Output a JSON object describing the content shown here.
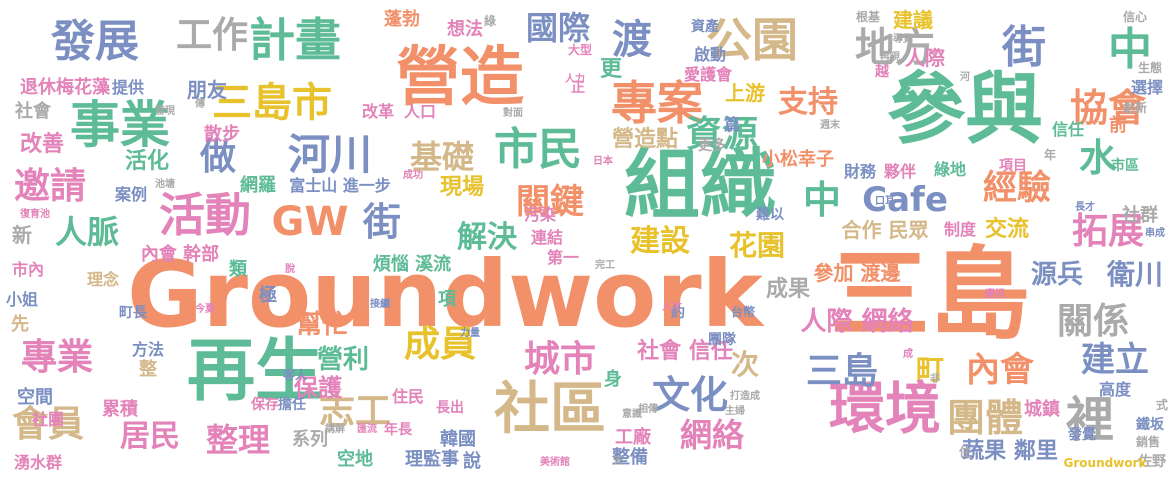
{
  "colors": {
    "orange": "#f2906a",
    "teal": "#5dbb97",
    "blue": "#7b8fc2",
    "pink": "#e383b9",
    "green": "#9bc946",
    "yellow": "#e8c22c",
    "tan": "#d4b88a",
    "gray": "#aaaaaa"
  },
  "words": [
    {
      "text": "Groundwork",
      "color": "orange"
    },
    {
      "text": "三島",
      "color": "orange"
    },
    {
      "text": "參與",
      "color": "teal"
    },
    {
      "text": "組織",
      "color": "teal"
    },
    {
      "text": "再生",
      "color": "teal"
    },
    {
      "text": "營造",
      "color": "orange"
    },
    {
      "text": "環境",
      "color": "pink"
    },
    {
      "text": "社區",
      "color": "tan"
    },
    {
      "text": "事業",
      "color": "teal"
    },
    {
      "text": "計畫",
      "color": "teal"
    },
    {
      "text": "公園",
      "color": "tan"
    },
    {
      "text": "專案",
      "color": "orange"
    },
    {
      "text": "市民",
      "color": "teal"
    },
    {
      "text": "活動",
      "color": "pink"
    },
    {
      "text": "發展",
      "color": "blue"
    },
    {
      "text": "工作",
      "color": "gray"
    },
    {
      "text": "國際",
      "color": "blue"
    },
    {
      "text": "河川",
      "color": "blue"
    },
    {
      "text": "三島市",
      "color": "yellow"
    },
    {
      "text": "地方",
      "color": "gray"
    },
    {
      "text": "街",
      "color": "blue"
    },
    {
      "text": "中",
      "color": "teal"
    },
    {
      "text": "渡",
      "color": "blue"
    },
    {
      "text": "協會",
      "color": "orange"
    },
    {
      "text": "資源",
      "color": "teal"
    },
    {
      "text": "支持",
      "color": "orange"
    },
    {
      "text": "水",
      "color": "teal"
    },
    {
      "text": "邀請",
      "color": "pink"
    },
    {
      "text": "基礎",
      "color": "tan"
    },
    {
      "text": "做",
      "color": "blue"
    },
    {
      "text": "關鍵",
      "color": "orange"
    },
    {
      "text": "GW",
      "color": "orange"
    },
    {
      "text": "街",
      "color": "blue"
    },
    {
      "text": "中",
      "color": "teal"
    },
    {
      "text": "Cafe",
      "color": "blue"
    },
    {
      "text": "經驗",
      "color": "orange"
    },
    {
      "text": "拓展",
      "color": "pink"
    },
    {
      "text": "人脈",
      "color": "teal"
    },
    {
      "text": "解決",
      "color": "teal"
    },
    {
      "text": "建設",
      "color": "yellow"
    },
    {
      "text": "花園",
      "color": "yellow"
    },
    {
      "text": "人際 網絡",
      "color": "pink"
    },
    {
      "text": "關係",
      "color": "gray"
    },
    {
      "text": "衛川",
      "color": "blue"
    },
    {
      "text": "源兵",
      "color": "blue"
    },
    {
      "text": "成員",
      "color": "yellow"
    },
    {
      "text": "城市",
      "color": "pink"
    },
    {
      "text": "文化",
      "color": "blue"
    },
    {
      "text": "三島",
      "color": "blue"
    },
    {
      "text": "町",
      "color": "yellow"
    },
    {
      "text": "內會",
      "color": "orange"
    },
    {
      "text": "建立",
      "color": "blue"
    },
    {
      "text": "裡",
      "color": "gray"
    },
    {
      "text": "團體",
      "color": "tan"
    },
    {
      "text": "專業",
      "color": "pink"
    },
    {
      "text": "會員",
      "color": "tan"
    },
    {
      "text": "居民",
      "color": "pink"
    },
    {
      "text": "志工",
      "color": "tan"
    },
    {
      "text": "整理",
      "color": "pink"
    },
    {
      "text": "網絡",
      "color": "pink"
    },
    {
      "text": "營利",
      "color": "teal"
    },
    {
      "text": "幫忙",
      "color": "orange"
    },
    {
      "text": "保護",
      "color": "pink"
    },
    {
      "text": "社會 信任",
      "color": "pink"
    },
    {
      "text": "次",
      "color": "tan"
    },
    {
      "text": "蔬果 鄰里",
      "color": "blue"
    },
    {
      "text": "更",
      "color": "teal"
    },
    {
      "text": "上游",
      "color": "yellow"
    },
    {
      "text": "營造點",
      "color": "tan"
    },
    {
      "text": "現場",
      "color": "yellow"
    },
    {
      "text": "活化",
      "color": "teal"
    },
    {
      "text": "散步",
      "color": "pink"
    },
    {
      "text": "改善",
      "color": "pink"
    },
    {
      "text": "朋友",
      "color": "blue"
    },
    {
      "text": "退休梅花藻",
      "color": "pink"
    },
    {
      "text": "社會",
      "color": "gray"
    },
    {
      "text": "蓬勃",
      "color": "orange"
    },
    {
      "text": "想法",
      "color": "pink"
    },
    {
      "text": "建議",
      "color": "yellow"
    },
    {
      "text": "人際",
      "color": "pink"
    },
    {
      "text": "合作 民眾",
      "color": "tan"
    },
    {
      "text": "交流",
      "color": "yellow"
    },
    {
      "text": "參加 渡邊",
      "color": "orange"
    },
    {
      "text": "成果",
      "color": "gray"
    },
    {
      "text": "小松幸子",
      "color": "orange"
    },
    {
      "text": "夥伴",
      "color": "pink"
    },
    {
      "text": "網羅",
      "color": "teal"
    },
    {
      "text": "富士山 進一步",
      "color": "blue"
    },
    {
      "text": "新",
      "color": "gray"
    },
    {
      "text": "內會 幹部",
      "color": "pink"
    },
    {
      "text": "煩惱 溪流",
      "color": "teal"
    },
    {
      "text": "理監事",
      "color": "blue"
    },
    {
      "text": "空地",
      "color": "teal"
    },
    {
      "text": "系列",
      "color": "gray"
    },
    {
      "text": "韓國",
      "color": "blue"
    },
    {
      "text": "累積",
      "color": "pink"
    },
    {
      "text": "工廠",
      "color": "pink"
    },
    {
      "text": "整備",
      "color": "blue"
    },
    {
      "text": "社群",
      "color": "gray"
    },
    {
      "text": "城鎮",
      "color": "pink"
    },
    {
      "text": "高度",
      "color": "blue"
    },
    {
      "text": "佐野",
      "color": "gray"
    },
    {
      "text": "Groundwork",
      "color": "yellow"
    },
    {
      "text": "湧水群",
      "color": "pink"
    },
    {
      "text": "選擇",
      "color": "blue"
    },
    {
      "text": "生態",
      "color": "gray"
    },
    {
      "text": "信任",
      "color": "teal"
    },
    {
      "text": "前",
      "color": "orange"
    },
    {
      "text": "市區",
      "color": "teal"
    },
    {
      "text": "住民",
      "color": "pink"
    },
    {
      "text": "空間",
      "color": "blue"
    },
    {
      "text": "社團",
      "color": "pink"
    },
    {
      "text": "方法",
      "color": "blue"
    },
    {
      "text": "保存",
      "color": "pink"
    },
    {
      "text": "擔任",
      "color": "blue"
    },
    {
      "text": "小姐",
      "color": "blue"
    },
    {
      "text": "理念",
      "color": "tan"
    },
    {
      "text": "市內",
      "color": "pink"
    },
    {
      "text": "案例",
      "color": "blue"
    },
    {
      "text": "提供",
      "color": "blue"
    },
    {
      "text": "資產",
      "color": "blue"
    },
    {
      "text": "啟動",
      "color": "blue"
    },
    {
      "text": "愛護會",
      "color": "pink"
    },
    {
      "text": "更多",
      "color": "gray"
    },
    {
      "text": "人口",
      "color": "pink"
    },
    {
      "text": "改革",
      "color": "pink"
    },
    {
      "text": "連結",
      "color": "pink"
    },
    {
      "text": "污染",
      "color": "pink"
    },
    {
      "text": "第一",
      "color": "pink"
    },
    {
      "text": "類",
      "color": "teal"
    },
    {
      "text": "極",
      "color": "blue"
    },
    {
      "text": "町長",
      "color": "blue"
    },
    {
      "text": "項",
      "color": "teal"
    },
    {
      "text": "身",
      "color": "teal"
    },
    {
      "text": "財務",
      "color": "blue"
    },
    {
      "text": "綠地",
      "color": "teal"
    },
    {
      "text": "項目",
      "color": "pink"
    },
    {
      "text": "制度",
      "color": "pink"
    },
    {
      "text": "難以",
      "color": "blue"
    },
    {
      "text": "說",
      "color": "blue"
    },
    {
      "text": "年長",
      "color": "pink"
    },
    {
      "text": "長出",
      "color": "pink"
    },
    {
      "text": "客人",
      "color": "blue"
    },
    {
      "text": "團隊",
      "color": "blue"
    },
    {
      "text": "約",
      "color": "blue"
    },
    {
      "text": "篇",
      "color": "blue"
    },
    {
      "text": "正",
      "color": "pink"
    },
    {
      "text": "先",
      "color": "tan"
    },
    {
      "text": "整",
      "color": "tan"
    },
    {
      "text": "式",
      "color": "gray"
    },
    {
      "text": "鐵坂",
      "color": "blue"
    },
    {
      "text": "發覺",
      "color": "blue"
    },
    {
      "text": "銷售",
      "color": "gray"
    },
    {
      "text": "創新",
      "color": "gray"
    },
    {
      "text": "信心",
      "color": "gray"
    },
    {
      "text": "根基",
      "color": "gray"
    },
    {
      "text": "再現",
      "color": "gray"
    },
    {
      "text": "大型",
      "color": "pink"
    },
    {
      "text": "人力",
      "color": "pink"
    },
    {
      "text": "綠",
      "color": "gray"
    },
    {
      "text": "越",
      "color": "pink"
    },
    {
      "text": "對面",
      "color": "gray"
    },
    {
      "text": "日本",
      "color": "pink"
    },
    {
      "text": "成功",
      "color": "pink"
    },
    {
      "text": "池塘",
      "color": "gray"
    },
    {
      "text": "復育池",
      "color": "pink"
    },
    {
      "text": "口耳",
      "color": "blue"
    },
    {
      "text": "長才",
      "color": "blue"
    },
    {
      "text": "串成",
      "color": "blue"
    },
    {
      "text": "人才",
      "color": "pink"
    },
    {
      "text": "接續",
      "color": "blue"
    },
    {
      "text": "今夏",
      "color": "pink"
    },
    {
      "text": "力量",
      "color": "blue"
    },
    {
      "text": "台幣",
      "color": "blue"
    },
    {
      "text": "慶祝",
      "color": "pink"
    },
    {
      "text": "完工",
      "color": "gray"
    },
    {
      "text": "意識",
      "color": "gray"
    },
    {
      "text": "主婦",
      "color": "gray"
    },
    {
      "text": "打造成",
      "color": "gray"
    },
    {
      "text": "相傳",
      "color": "gray"
    },
    {
      "text": "美術館",
      "color": "pink"
    },
    {
      "text": "天",
      "color": "gray"
    },
    {
      "text": "講解",
      "color": "gray"
    },
    {
      "text": "匯流",
      "color": "pink"
    },
    {
      "text": "住",
      "color": "gray"
    },
    {
      "text": "成",
      "color": "pink"
    },
    {
      "text": "非",
      "color": "gray"
    },
    {
      "text": "年",
      "color": "gray"
    },
    {
      "text": "週末",
      "color": "gray"
    },
    {
      "text": "發現",
      "color": "gray"
    },
    {
      "text": "河",
      "color": "gray"
    },
    {
      "text": "導覽",
      "color": "gray"
    },
    {
      "text": "傳",
      "color": "gray"
    },
    {
      "text": "脫",
      "color": "pink"
    }
  ]
}
